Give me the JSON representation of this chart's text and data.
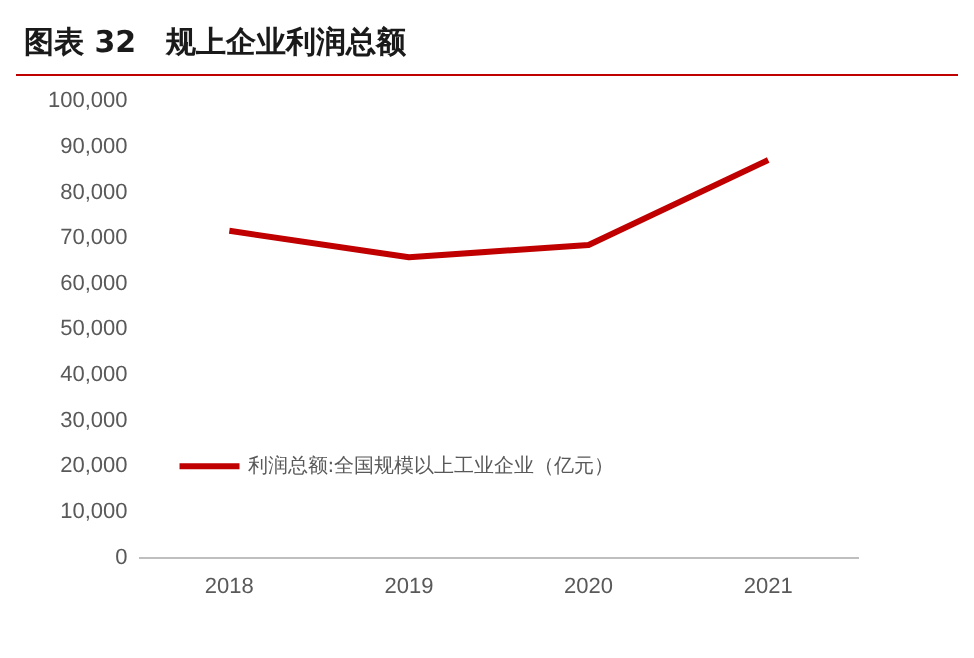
{
  "chart_data": {
    "type": "line",
    "title": "图表 32　规上企业利润总额",
    "categories": [
      "2018",
      "2019",
      "2020",
      "2021"
    ],
    "series": [
      {
        "name": "利润总额:全国规模以上工业企业（亿元）",
        "color": "#c00000",
        "values": [
          71600,
          65800,
          68500,
          87100
        ]
      }
    ],
    "ylim": [
      0,
      100000
    ],
    "yticks": [
      {
        "value": 0,
        "label": "0"
      },
      {
        "value": 10000,
        "label": "10,000"
      },
      {
        "value": 20000,
        "label": "20,000"
      },
      {
        "value": 30000,
        "label": "30,000"
      },
      {
        "value": 40000,
        "label": "40,000"
      },
      {
        "value": 50000,
        "label": "50,000"
      },
      {
        "value": 60000,
        "label": "60,000"
      },
      {
        "value": 70000,
        "label": "70,000"
      },
      {
        "value": 80000,
        "label": "80,000"
      },
      {
        "value": 90000,
        "label": "90,000"
      },
      {
        "value": 100000,
        "label": "100,000"
      }
    ],
    "grid": false,
    "legend": "bottom left",
    "marker": "none",
    "line_style": "solid"
  }
}
